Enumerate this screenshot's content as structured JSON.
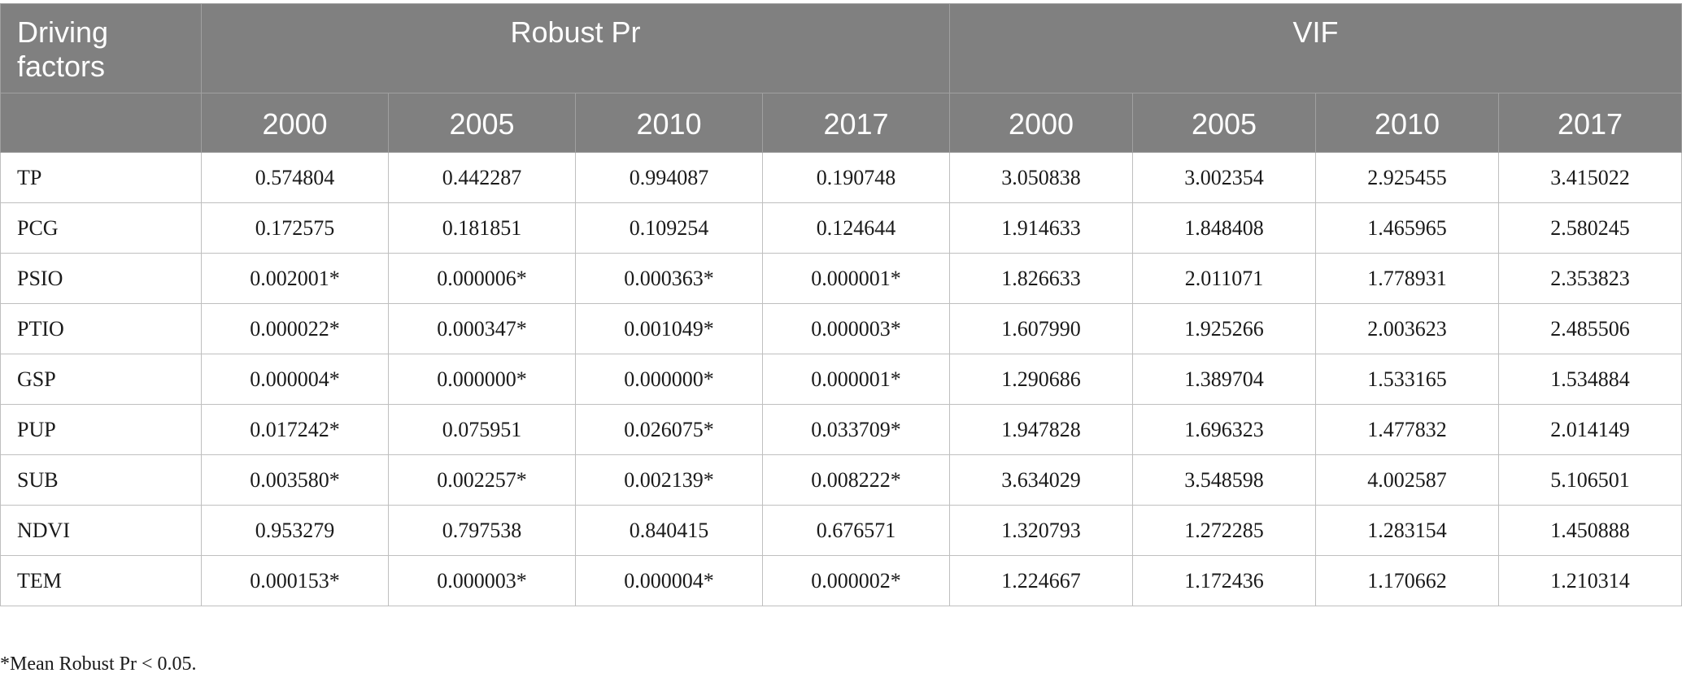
{
  "table": {
    "corner_header": "Driving factors",
    "groups": [
      "Robust Pr",
      "VIF"
    ],
    "years": [
      "2000",
      "2005",
      "2010",
      "2017",
      "2000",
      "2005",
      "2010",
      "2017"
    ],
    "rows": [
      {
        "factor": "TP",
        "values": [
          "0.574804",
          "0.442287",
          "0.994087",
          "0.190748",
          "3.050838",
          "3.002354",
          "2.925455",
          "3.415022"
        ]
      },
      {
        "factor": "PCG",
        "values": [
          "0.172575",
          "0.181851",
          "0.109254",
          "0.124644",
          "1.914633",
          "1.848408",
          "1.465965",
          "2.580245"
        ]
      },
      {
        "factor": "PSIO",
        "values": [
          "0.002001*",
          "0.000006*",
          "0.000363*",
          "0.000001*",
          "1.826633",
          "2.011071",
          "1.778931",
          "2.353823"
        ]
      },
      {
        "factor": "PTIO",
        "values": [
          "0.000022*",
          "0.000347*",
          "0.001049*",
          "0.000003*",
          "1.607990",
          "1.925266",
          "2.003623",
          "2.485506"
        ]
      },
      {
        "factor": "GSP",
        "values": [
          "0.000004*",
          "0.000000*",
          "0.000000*",
          "0.000001*",
          "1.290686",
          "1.389704",
          "1.533165",
          "1.534884"
        ]
      },
      {
        "factor": "PUP",
        "values": [
          "0.017242*",
          "0.075951",
          "0.026075*",
          "0.033709*",
          "1.947828",
          "1.696323",
          "1.477832",
          "2.014149"
        ]
      },
      {
        "factor": "SUB",
        "values": [
          "0.003580*",
          "0.002257*",
          "0.002139*",
          "0.008222*",
          "3.634029",
          "3.548598",
          "4.002587",
          "5.106501"
        ]
      },
      {
        "factor": "NDVI",
        "values": [
          "0.953279",
          "0.797538",
          "0.840415",
          "0.676571",
          "1.320793",
          "1.272285",
          "1.283154",
          "1.450888"
        ]
      },
      {
        "factor": "TEM",
        "values": [
          "0.000153*",
          "0.000003*",
          "0.000004*",
          "0.000002*",
          "1.224667",
          "1.172436",
          "1.170662",
          "1.210314"
        ]
      }
    ]
  },
  "footnote": "*Mean Robust Pr < 0.05.",
  "colors": {
    "header_bg": "#808080",
    "header_text": "#ffffff",
    "grid_line": "#bfbfbf"
  }
}
